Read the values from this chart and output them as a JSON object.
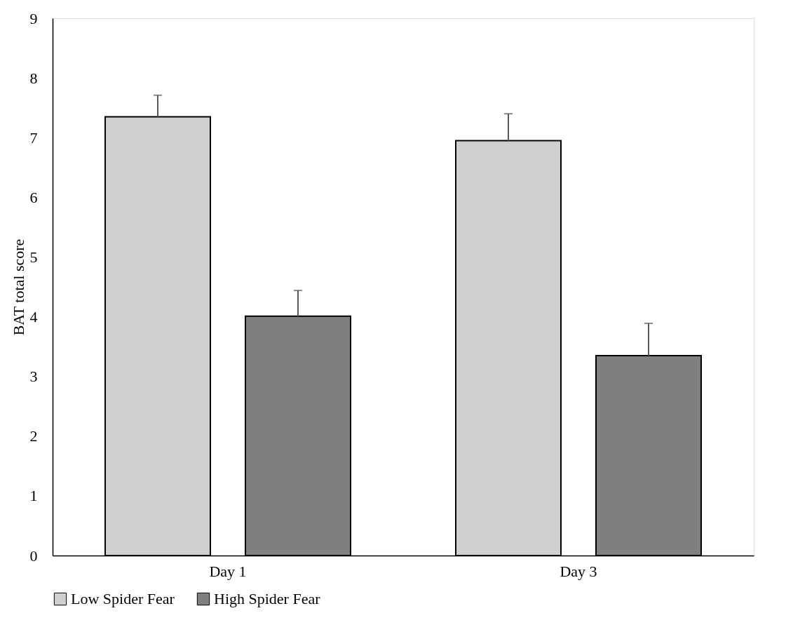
{
  "chart_data": {
    "type": "bar",
    "ylabel": "BAT total score",
    "categories": [
      "Day 1",
      "Day 3"
    ],
    "series": [
      {
        "name": "Low Spider Fear",
        "color": "#d0cecf",
        "values": [
          7.35,
          6.95
        ],
        "errors": [
          [
            7.35,
            7.71
          ],
          [
            6.95,
            7.4
          ]
        ]
      },
      {
        "name": "High Spider Fear",
        "color": "#7f7f7f",
        "values": [
          4.01,
          3.35
        ],
        "errors": [
          [
            4.01,
            4.44
          ],
          [
            3.35,
            3.89
          ]
        ]
      }
    ],
    "ylim": [
      0,
      9
    ],
    "yticks": [
      0,
      1,
      2,
      3,
      4,
      5,
      6,
      7,
      8,
      9
    ],
    "grid": false,
    "legend": "bottom"
  }
}
